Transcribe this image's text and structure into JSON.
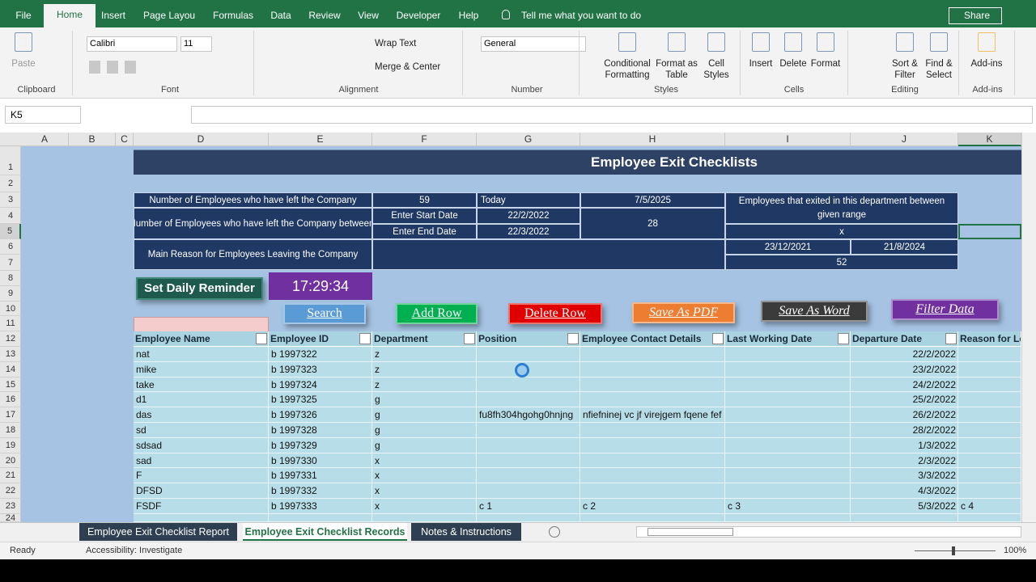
{
  "ribbon": {
    "tabs": [
      "File",
      "Home",
      "Insert",
      "Page Layout",
      "Formulas",
      "Data",
      "Review",
      "View",
      "Developer",
      "Help"
    ],
    "tell_me": "Tell me what you want to do",
    "share": "Share",
    "font_name": "Calibri",
    "font_size": "11",
    "number_format": "General",
    "buttons": [
      [
        "Paste"
      ],
      [
        "Wrap Text"
      ],
      [
        "Merge & Center"
      ],
      [
        "Conditional",
        "Formatting"
      ],
      [
        "Format as",
        "Table"
      ],
      [
        "Cell",
        "Styles"
      ],
      [
        "Insert"
      ],
      [
        "Delete"
      ],
      [
        "Format"
      ],
      [
        "Sort &",
        "Filter"
      ],
      [
        "Find &",
        "Select"
      ],
      [
        "Add-ins"
      ]
    ],
    "groups": [
      "Clipboard",
      "Font",
      "Alignment",
      "Number",
      "Styles",
      "Cells",
      "Editing",
      "Add-ins"
    ]
  },
  "formula_bar": {
    "name_box": "K5"
  },
  "grid": {
    "columns": [
      "A",
      "B",
      "C",
      "D",
      "E",
      "F",
      "G",
      "H",
      "I",
      "J",
      "K"
    ],
    "rows": [
      1,
      2,
      3,
      4,
      5,
      6,
      7,
      8,
      9,
      10,
      11,
      12,
      13,
      14,
      15,
      16,
      17,
      18,
      19,
      20,
      21,
      22,
      23,
      24
    ]
  },
  "sheet": {
    "title": "Employee Exit Checklists",
    "summary": [
      "Number of Employees who have left the Company",
      "59",
      "Today",
      "7/5/2025",
      "Employees that exited in this department between given range",
      "Number of Employees who have left the Company between:",
      "Enter Start Date",
      "22/2/2022",
      "28",
      "Enter End Date",
      "22/3/2022",
      "x",
      "Main Reason for Employees Leaving the Company",
      "23/12/2021",
      "21/8/2024",
      "52"
    ],
    "reminder_button": "Set Daily Reminder",
    "clock": "17:29:34",
    "buttons": [
      "Search",
      "Add Row",
      "Delete Row",
      "Save As PDF",
      "Save As Word",
      "Filter Data"
    ],
    "table": {
      "headers": [
        "Employee Name",
        "Employee ID",
        "Department",
        "Position",
        "Employee Contact Details",
        "Last Working Date",
        "Departure Date",
        "Reason for Le"
      ],
      "rows": [
        [
          "nat",
          "b 1997322",
          "z",
          null,
          null,
          null,
          "22/2/2022",
          null
        ],
        [
          "mike",
          "b 1997323",
          "z",
          null,
          null,
          null,
          "23/2/2022",
          null
        ],
        [
          "take",
          "b 1997324",
          "z",
          null,
          null,
          null,
          "24/2/2022",
          null
        ],
        [
          "d1",
          "b 1997325",
          "g",
          null,
          null,
          null,
          "25/2/2022",
          null
        ],
        [
          "das",
          "b 1997326",
          "g",
          "fu8fh304hgohg0hnjng",
          "nfiefninej vc jf virejgem fqene fef",
          null,
          "26/2/2022",
          null
        ],
        [
          "sd",
          "b 1997328",
          "g",
          null,
          null,
          null,
          "28/2/2022",
          null
        ],
        [
          "sdsad",
          "b 1997329",
          "g",
          null,
          null,
          null,
          "1/3/2022",
          null
        ],
        [
          "sad",
          "b 1997330",
          "x",
          null,
          null,
          null,
          "2/3/2022",
          null
        ],
        [
          "F",
          "b 1997331",
          "x",
          null,
          null,
          null,
          "3/3/2022",
          null
        ],
        [
          "DFSD",
          "b 1997332",
          "x",
          null,
          null,
          null,
          "4/3/2022",
          null
        ],
        [
          "FSDF",
          "b 1997333",
          "x",
          "c 1",
          "c 2",
          "c 3",
          "5/3/2022",
          "c 4"
        ]
      ]
    }
  },
  "sheet_tabs": [
    "Employee Exit Checklist Report",
    "Employee Exit Checklist Records",
    "Notes & Instructions"
  ],
  "status_bar": {
    "ready": "Ready",
    "accessibility": "Accessibility: Investigate",
    "zoom": "100%"
  }
}
